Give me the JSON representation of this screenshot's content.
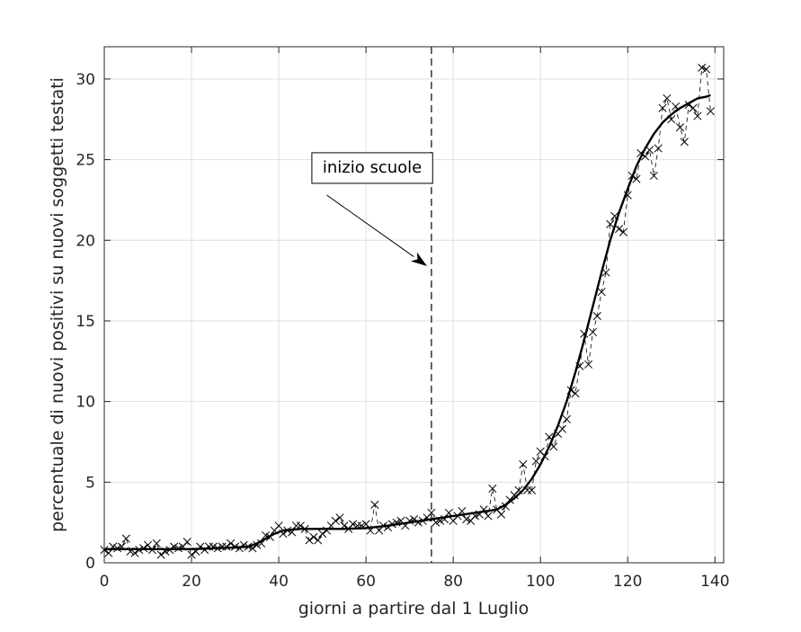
{
  "chart_data": {
    "type": "line",
    "title": "",
    "xlabel": "giorni a partire dal 1 Luglio",
    "ylabel": "percentuale di nuovi positivi su nuovi soggetti testati",
    "xlim": [
      0,
      142
    ],
    "ylim": [
      0,
      32
    ],
    "grid": true,
    "x_ticks": [
      0,
      20,
      40,
      60,
      80,
      100,
      120,
      140
    ],
    "y_ticks": [
      0,
      5,
      10,
      15,
      20,
      25,
      30
    ],
    "x_tick_labels": [
      "0",
      "20",
      "40",
      "60",
      "80",
      "100",
      "120",
      "140"
    ],
    "y_tick_labels": [
      "0",
      "5",
      "10",
      "15",
      "20",
      "25",
      "30"
    ],
    "vline_x": 75,
    "annotation": {
      "text": "inizio scuole",
      "text_x": 48,
      "text_y": 24.2,
      "arrow_from": [
        51,
        22.8
      ],
      "arrow_to": [
        74,
        18.4
      ]
    },
    "series": [
      {
        "style": "dashed-x-markers",
        "x": [
          0,
          1,
          2,
          3,
          4,
          5,
          6,
          7,
          8,
          9,
          10,
          11,
          12,
          13,
          14,
          15,
          16,
          17,
          18,
          19,
          20,
          21,
          22,
          23,
          24,
          25,
          26,
          27,
          28,
          29,
          30,
          31,
          32,
          33,
          34,
          35,
          36,
          37,
          38,
          39,
          40,
          41,
          42,
          43,
          44,
          45,
          46,
          47,
          48,
          49,
          50,
          51,
          52,
          53,
          54,
          55,
          56,
          57,
          58,
          59,
          60,
          61,
          62,
          63,
          64,
          65,
          66,
          67,
          68,
          69,
          70,
          71,
          72,
          73,
          74,
          75,
          76,
          77,
          78,
          79,
          80,
          81,
          82,
          83,
          84,
          85,
          86,
          87,
          88,
          89,
          90,
          91,
          92,
          93,
          94,
          95,
          96,
          97,
          98,
          99,
          100,
          101,
          102,
          103,
          104,
          105,
          106,
          107,
          108,
          109,
          110,
          111,
          112,
          113,
          114,
          115,
          116,
          117,
          118,
          119,
          120,
          121,
          122,
          123,
          124,
          125,
          126,
          127,
          128,
          129,
          130,
          131,
          132,
          133,
          134,
          135,
          136,
          137,
          138,
          139
        ],
        "y": [
          0.8,
          0.6,
          1.0,
          0.9,
          1.0,
          1.5,
          0.7,
          0.6,
          0.8,
          0.9,
          1.1,
          0.8,
          1.2,
          0.5,
          0.7,
          0.8,
          1.0,
          0.9,
          1.0,
          1.3,
          0.5,
          0.7,
          1.0,
          0.8,
          1.0,
          1.0,
          0.9,
          1.0,
          1.0,
          1.2,
          1.0,
          0.9,
          1.1,
          1.0,
          0.9,
          1.1,
          1.2,
          1.7,
          1.6,
          2.0,
          2.3,
          1.8,
          2.0,
          1.9,
          2.3,
          2.3,
          2.1,
          1.4,
          1.6,
          1.4,
          1.8,
          2.0,
          2.3,
          2.6,
          2.8,
          2.3,
          2.1,
          2.4,
          2.3,
          2.3,
          2.4,
          2.0,
          3.6,
          2.0,
          2.3,
          2.2,
          2.4,
          2.5,
          2.6,
          2.3,
          2.6,
          2.7,
          2.5,
          2.6,
          2.8,
          3.1,
          2.5,
          2.6,
          2.7,
          3.1,
          2.6,
          2.9,
          3.2,
          2.7,
          2.6,
          2.9,
          3.0,
          3.3,
          2.9,
          4.6,
          3.3,
          3.0,
          3.5,
          3.9,
          4.2,
          4.5,
          6.1,
          4.5,
          4.5,
          6.3,
          6.9,
          6.6,
          7.8,
          7.2,
          8.0,
          8.3,
          8.9,
          10.7,
          10.5,
          12.2,
          14.2,
          12.3,
          14.3,
          15.3,
          16.8,
          18.0,
          21.0,
          21.5,
          20.7,
          20.5,
          22.8,
          24.0,
          23.8,
          25.4,
          25.2,
          25.6,
          24.0,
          25.7,
          28.2,
          28.8,
          27.5,
          28.3,
          27.0,
          26.1,
          28.4,
          28.2,
          27.7,
          30.7,
          30.6,
          28.0
        ]
      },
      {
        "style": "solid-fit",
        "x": [
          0,
          5,
          10,
          15,
          20,
          25,
          30,
          33,
          35,
          37,
          39,
          41,
          43,
          45,
          50,
          55,
          60,
          65,
          70,
          75,
          80,
          85,
          90,
          92,
          94,
          96,
          98,
          100,
          102,
          104,
          106,
          108,
          110,
          112,
          114,
          116,
          118,
          120,
          122,
          124,
          126,
          128,
          130,
          132,
          134,
          136,
          138,
          139
        ],
        "y": [
          0.85,
          0.85,
          0.85,
          0.85,
          0.85,
          0.9,
          0.95,
          1.0,
          1.2,
          1.5,
          1.8,
          2.0,
          2.05,
          2.1,
          2.1,
          2.1,
          2.15,
          2.3,
          2.5,
          2.7,
          2.9,
          3.1,
          3.3,
          3.6,
          4.0,
          4.5,
          5.2,
          6.1,
          7.2,
          8.5,
          10.0,
          11.8,
          13.8,
          15.9,
          18.0,
          20.0,
          21.7,
          23.2,
          24.6,
          25.7,
          26.6,
          27.3,
          27.8,
          28.2,
          28.5,
          28.8,
          28.9,
          29.0
        ]
      }
    ]
  }
}
